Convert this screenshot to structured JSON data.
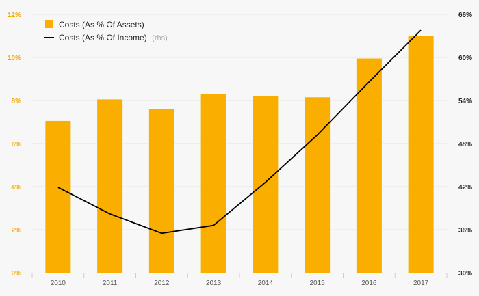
{
  "chart_data": {
    "type": "bar",
    "categories": [
      "2010",
      "2011",
      "2012",
      "2013",
      "2014",
      "2015",
      "2016",
      "2017"
    ],
    "series": [
      {
        "name": "Costs (As % Of Assets)",
        "type": "bar",
        "axis": "left",
        "color": "#f9ae00",
        "values": [
          7.05,
          8.05,
          7.6,
          8.3,
          8.2,
          8.15,
          9.95,
          11.0
        ]
      },
      {
        "name": "Costs (As % Of Income)",
        "type": "line",
        "axis": "right",
        "color": "#000000",
        "values": [
          41.9,
          38.2,
          35.5,
          36.6,
          42.6,
          49.2,
          56.6,
          63.8
        ]
      }
    ],
    "legend_note": "(rhs)",
    "y_left": {
      "min": 0,
      "max": 12,
      "ticks": [
        "0%",
        "2%",
        "4%",
        "6%",
        "8%",
        "10%",
        "12%"
      ]
    },
    "y_right": {
      "min": 30,
      "max": 66,
      "ticks": [
        "30%",
        "36%",
        "42%",
        "48%",
        "54%",
        "60%",
        "66%"
      ]
    },
    "grid": true,
    "legend_position": "top-left"
  }
}
